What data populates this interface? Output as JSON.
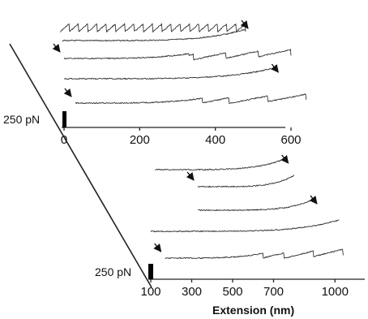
{
  "colors": {
    "ink": "#111111",
    "trace": "#333333",
    "background": "#ffffff"
  },
  "chart_data": [
    {
      "type": "line",
      "panel": "top",
      "xlim": [
        -10,
        650
      ],
      "x_ticks": [
        0,
        200,
        400,
        600
      ],
      "x_tick_labels": [
        "0",
        "200",
        "400",
        "600"
      ],
      "xlabel": "",
      "scale_bar_label": "250 pN",
      "series": [
        {
          "start": -10,
          "end": 480,
          "sawtooth": true,
          "peaks": 20,
          "arrow": "end"
        },
        {
          "start": -5,
          "end": 480,
          "sawtooth": false,
          "arrow": "none"
        },
        {
          "start": 0,
          "end": 600,
          "sawtooth": true,
          "peaks": 7,
          "arrow": "start"
        },
        {
          "start": 0,
          "end": 560,
          "sawtooth": false,
          "arrow": "end"
        },
        {
          "start": 30,
          "end": 640,
          "sawtooth": true,
          "peaks": 6,
          "arrow": "start"
        }
      ]
    },
    {
      "type": "line",
      "panel": "bottom",
      "xlim": [
        100,
        1100
      ],
      "x_ticks": [
        100,
        300,
        500,
        700,
        1000
      ],
      "x_tick_labels": [
        "100",
        "300",
        "500",
        "700",
        "1000"
      ],
      "xlabel": "Extension (nm)",
      "scale_bar_label": "250 pN",
      "series": [
        {
          "start": 120,
          "end": 760,
          "sawtooth": false,
          "arrow": "end"
        },
        {
          "start": 330,
          "end": 800,
          "sawtooth": false,
          "arrow": "start"
        },
        {
          "start": 330,
          "end": 900,
          "sawtooth": false,
          "arrow": "end"
        },
        {
          "start": 100,
          "end": 1020,
          "sawtooth": false,
          "arrow": "none"
        },
        {
          "start": 170,
          "end": 1040,
          "sawtooth": true,
          "peaks": 6,
          "arrow": "start"
        }
      ]
    }
  ]
}
